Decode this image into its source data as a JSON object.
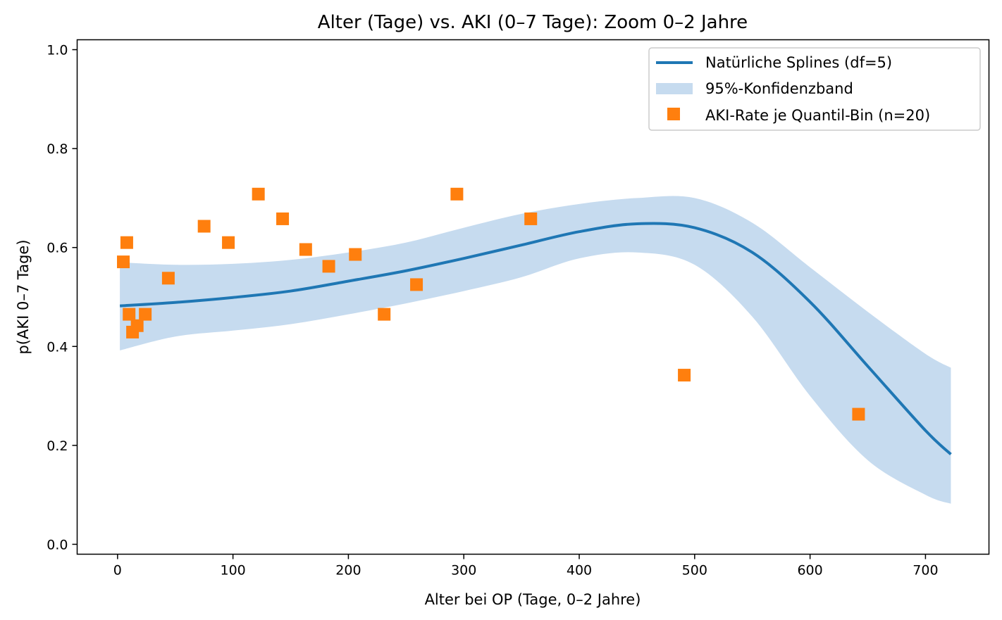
{
  "chart_data": {
    "type": "scatter",
    "title": "Alter (Tage) vs. AKI (0–7 Tage): Zoom 0–2 Jahre",
    "xlabel": "Alter bei OP (Tage, 0–2 Jahre)",
    "ylabel": "p(AKI 0–7 Tage)",
    "xlim": [
      -35,
      755
    ],
    "ylim": [
      -0.02,
      1.02
    ],
    "x_ticks": [
      0,
      100,
      200,
      300,
      400,
      500,
      600,
      700
    ],
    "x_tick_labels": [
      "0",
      "100",
      "200",
      "300",
      "400",
      "500",
      "600",
      "700"
    ],
    "y_ticks": [
      0.0,
      0.2,
      0.4,
      0.6,
      0.8,
      1.0
    ],
    "y_tick_labels": [
      "0.0",
      "0.2",
      "0.4",
      "0.6",
      "0.8",
      "1.0"
    ],
    "grid": false,
    "legend_position": "top-right",
    "colors": {
      "spline": "#1f77b4",
      "band": "#c6dbef",
      "points": "#ff7f0e"
    },
    "series": [
      {
        "name": "Natürliche Splines (df=5)",
        "kind": "line",
        "x": [
          2,
          50,
          100,
          150,
          200,
          250,
          300,
          350,
          400,
          450,
          500,
          550,
          600,
          650,
          700,
          722
        ],
        "y": [
          0.482,
          0.489,
          0.499,
          0.512,
          0.532,
          0.553,
          0.578,
          0.605,
          0.632,
          0.648,
          0.64,
          0.59,
          0.49,
          0.36,
          0.23,
          0.182
        ]
      },
      {
        "name": "95%-Konfidenzband",
        "kind": "band",
        "x": [
          2,
          50,
          100,
          150,
          200,
          250,
          300,
          350,
          400,
          450,
          500,
          550,
          600,
          650,
          700,
          722
        ],
        "lower": [
          0.392,
          0.42,
          0.432,
          0.445,
          0.465,
          0.487,
          0.512,
          0.54,
          0.578,
          0.59,
          0.565,
          0.46,
          0.3,
          0.17,
          0.1,
          0.082
        ],
        "upper": [
          0.57,
          0.565,
          0.567,
          0.575,
          0.59,
          0.61,
          0.64,
          0.668,
          0.688,
          0.7,
          0.7,
          0.65,
          0.56,
          0.47,
          0.385,
          0.357
        ]
      },
      {
        "name": "AKI-Rate je Quantil-Bin (n=20)",
        "kind": "scatter",
        "points": [
          {
            "x": 5,
            "y": 0.571
          },
          {
            "x": 8,
            "y": 0.61
          },
          {
            "x": 10,
            "y": 0.465
          },
          {
            "x": 13,
            "y": 0.429
          },
          {
            "x": 17,
            "y": 0.442
          },
          {
            "x": 24,
            "y": 0.465
          },
          {
            "x": 44,
            "y": 0.538
          },
          {
            "x": 75,
            "y": 0.643
          },
          {
            "x": 96,
            "y": 0.61
          },
          {
            "x": 122,
            "y": 0.708
          },
          {
            "x": 143,
            "y": 0.658
          },
          {
            "x": 163,
            "y": 0.596
          },
          {
            "x": 183,
            "y": 0.562
          },
          {
            "x": 206,
            "y": 0.586
          },
          {
            "x": 231,
            "y": 0.465
          },
          {
            "x": 259,
            "y": 0.525
          },
          {
            "x": 294,
            "y": 0.708
          },
          {
            "x": 358,
            "y": 0.658
          },
          {
            "x": 491,
            "y": 0.342
          },
          {
            "x": 642,
            "y": 0.263
          }
        ]
      }
    ]
  }
}
